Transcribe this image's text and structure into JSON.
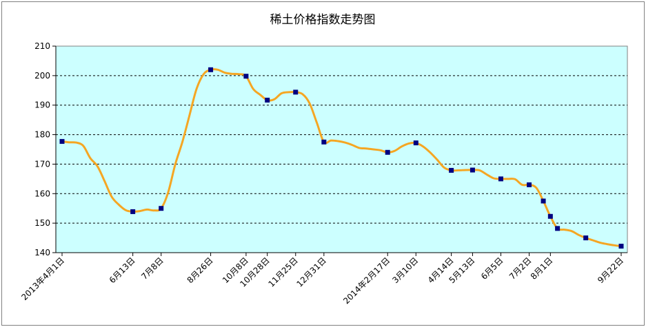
{
  "chart_data": {
    "type": "line",
    "title": "稀土价格指数走势图",
    "xlabel": "",
    "ylabel": "",
    "ylim": [
      140,
      210
    ],
    "yticks": [
      140,
      150,
      160,
      170,
      180,
      190,
      200,
      210
    ],
    "grid": true,
    "legend": "none",
    "colors": {
      "line": "#f5a623",
      "marker": "#000080",
      "plot_background": "#ccffff",
      "gridline": "#000000"
    },
    "x_tick_labels": [
      "2013年4月1日",
      "6月13日",
      "7月8日",
      "8月26日",
      "10月8日",
      "10月28日",
      "11月25日",
      "12月31日",
      "2014年2月17日",
      "3月10日",
      "4月14日",
      "5月13日",
      "6月5日",
      "7月2日",
      "8月1日",
      "9月22日"
    ],
    "series": [
      {
        "values": [
          177.7,
          177.4,
          177.3,
          176.2,
          172.0,
          169.3,
          164.3,
          159.0,
          156.3,
          154.4,
          153.9,
          154.1,
          154.6,
          154.3,
          155.0,
          160.5,
          170.0,
          177.5,
          186.5,
          195.5,
          200.5,
          202.0,
          202.0,
          201.0,
          200.6,
          200.5,
          199.8,
          195.5,
          193.5,
          191.7,
          192.0,
          194.0,
          194.4,
          194.4,
          193.7,
          190.5,
          184.0,
          177.5,
          178.0,
          177.8,
          177.3,
          176.5,
          175.5,
          175.3,
          175.0,
          174.7,
          174.0,
          174.5,
          176.0,
          177.0,
          177.2,
          176.0,
          174.0,
          171.5,
          168.8,
          167.9,
          167.9,
          168.0,
          168.0,
          167.9,
          166.5,
          165.2,
          165.0,
          165.0,
          164.9,
          163.0,
          163.0,
          162.0,
          157.5,
          152.3,
          148.2,
          147.8,
          147.3,
          146.0,
          145.0,
          144.2,
          143.4,
          142.9,
          142.5,
          142.2
        ],
        "markers": [
          {
            "index": 0,
            "value": 177.7
          },
          {
            "index": 10,
            "value": 153.9
          },
          {
            "index": 14,
            "value": 155.0
          },
          {
            "index": 21,
            "value": 202.0
          },
          {
            "index": 26,
            "value": 199.8
          },
          {
            "index": 29,
            "value": 191.7
          },
          {
            "index": 33,
            "value": 194.4
          },
          {
            "index": 37,
            "value": 177.5
          },
          {
            "index": 46,
            "value": 174.0
          },
          {
            "index": 50,
            "value": 177.2
          },
          {
            "index": 55,
            "value": 167.9
          },
          {
            "index": 58,
            "value": 168.0
          },
          {
            "index": 62,
            "value": 165.0
          },
          {
            "index": 66,
            "value": 163.0
          },
          {
            "index": 68,
            "value": 157.5
          },
          {
            "index": 69,
            "value": 152.3
          },
          {
            "index": 70,
            "value": 148.2
          },
          {
            "index": 74,
            "value": 145.0
          },
          {
            "index": 79,
            "value": 142.2
          }
        ]
      }
    ],
    "x_tick_positions": [
      0,
      10,
      14,
      21,
      26,
      29,
      33,
      37,
      46,
      50,
      55,
      58,
      62,
      66,
      69,
      79
    ]
  }
}
